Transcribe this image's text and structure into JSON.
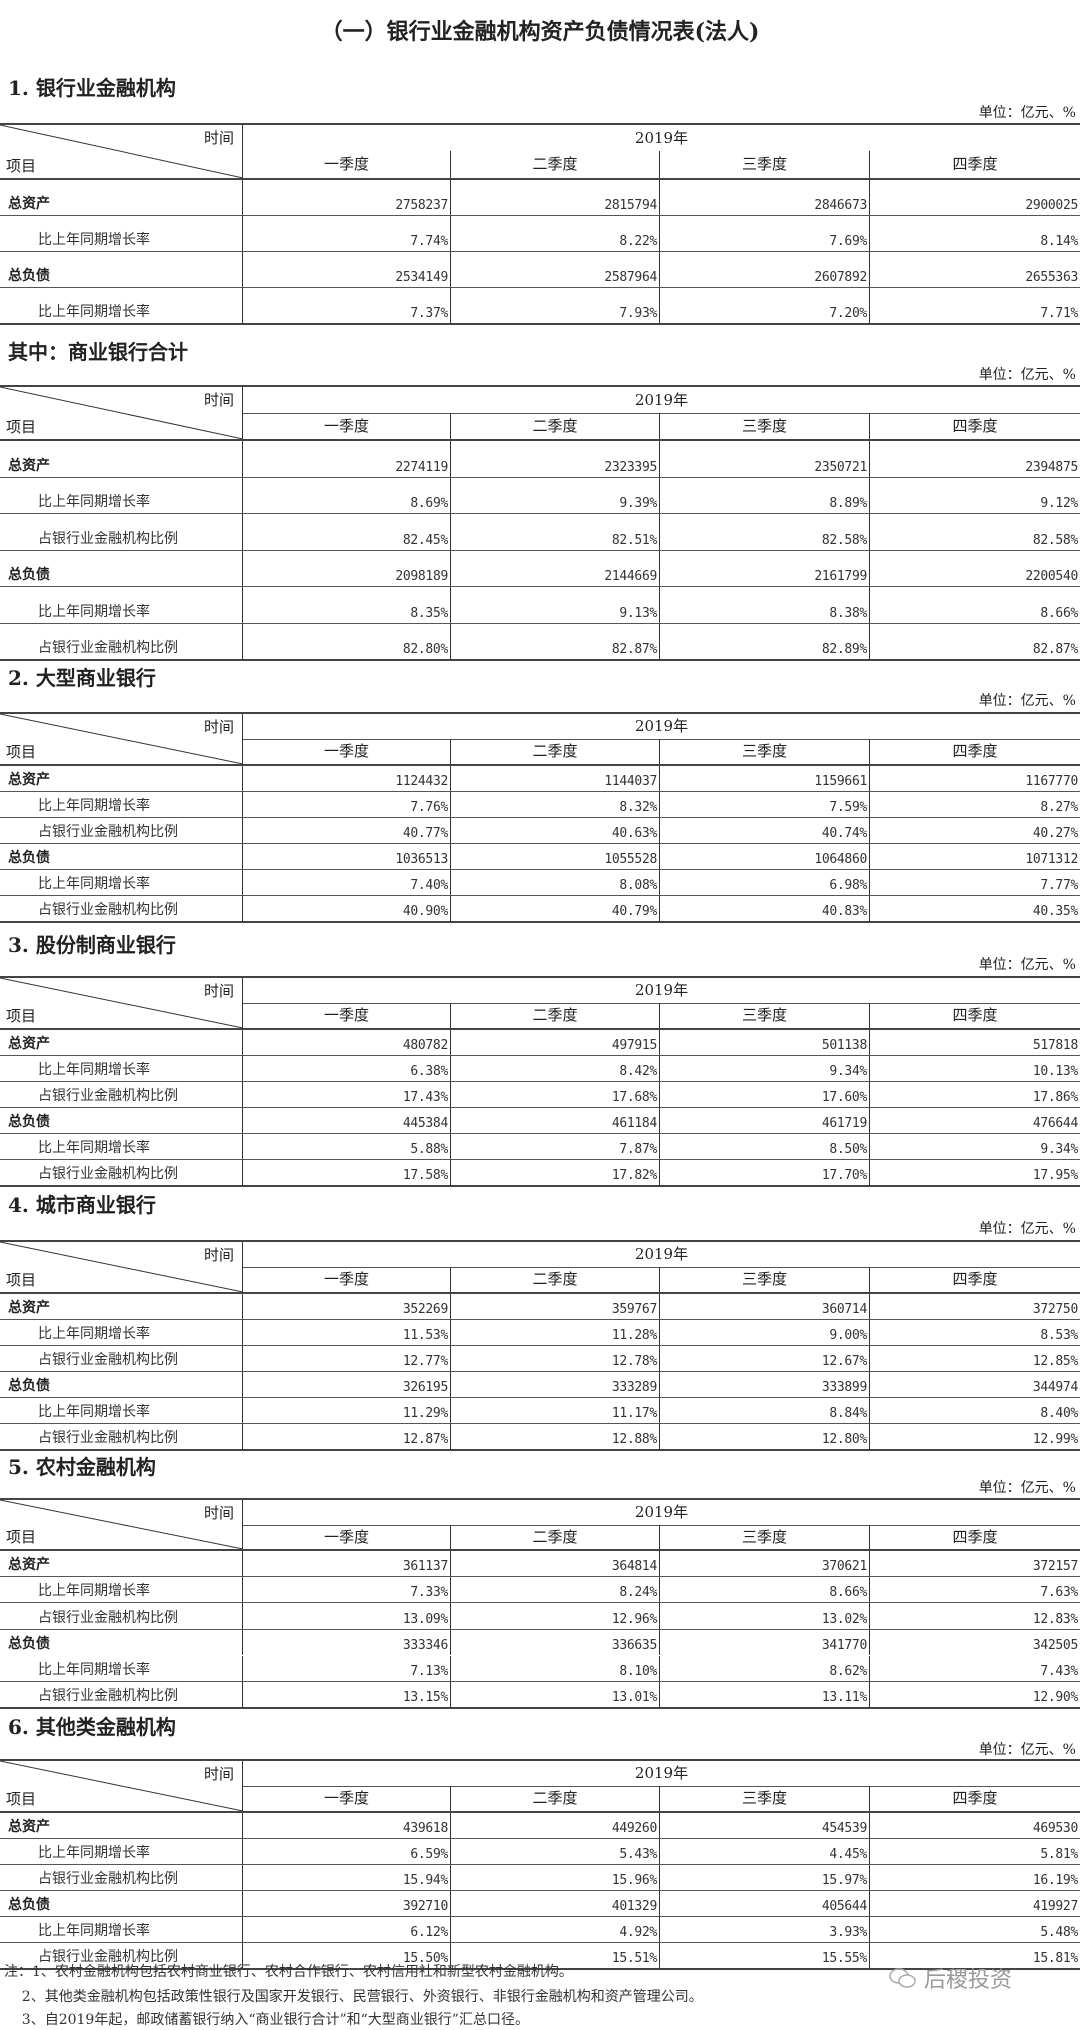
{
  "title": "（一）银行业金融机构资产负债情况表(法人)",
  "table_header": {
    "time": "时间",
    "item": "项目",
    "year": "2019年",
    "quarters": [
      "一季度",
      "二季度",
      "三季度",
      "四季度"
    ]
  },
  "unit": "单位：亿元、%",
  "sections": [
    {
      "heading": "1.  银行业金融机构",
      "rows": [
        {
          "label": "总资产",
          "main": true,
          "values": [
            "2758237",
            "2815794",
            "2846673",
            "2900025"
          ]
        },
        {
          "label": "比上年同期增长率",
          "values": [
            "7.74%",
            "8.22%",
            "7.69%",
            "8.14%"
          ]
        },
        {
          "label": "总负债",
          "main": true,
          "values": [
            "2534149",
            "2587964",
            "2607892",
            "2655363"
          ]
        },
        {
          "label": "比上年同期增长率",
          "values": [
            "7.37%",
            "7.93%",
            "7.20%",
            "7.71%"
          ]
        }
      ]
    },
    {
      "heading": "其中：商业银行合计",
      "rows": [
        {
          "label": "总资产",
          "main": true,
          "values": [
            "2274119",
            "2323395",
            "2350721",
            "2394875"
          ]
        },
        {
          "label": "比上年同期增长率",
          "values": [
            "8.69%",
            "9.39%",
            "8.89%",
            "9.12%"
          ]
        },
        {
          "label": "占银行业金融机构比例",
          "values": [
            "82.45%",
            "82.51%",
            "82.58%",
            "82.58%"
          ]
        },
        {
          "label": "总负债",
          "main": true,
          "values": [
            "2098189",
            "2144669",
            "2161799",
            "2200540"
          ]
        },
        {
          "label": "比上年同期增长率",
          "values": [
            "8.35%",
            "9.13%",
            "8.38%",
            "8.66%"
          ]
        },
        {
          "label": "占银行业金融机构比例",
          "values": [
            "82.80%",
            "82.87%",
            "82.89%",
            "82.87%"
          ]
        }
      ]
    },
    {
      "heading": "2.  大型商业银行",
      "rows": [
        {
          "label": "总资产",
          "main": true,
          "values": [
            "1124432",
            "1144037",
            "1159661",
            "1167770"
          ]
        },
        {
          "label": "比上年同期增长率",
          "values": [
            "7.76%",
            "8.32%",
            "7.59%",
            "8.27%"
          ]
        },
        {
          "label": "占银行业金融机构比例",
          "values": [
            "40.77%",
            "40.63%",
            "40.74%",
            "40.27%"
          ]
        },
        {
          "label": "总负债",
          "main": true,
          "values": [
            "1036513",
            "1055528",
            "1064860",
            "1071312"
          ]
        },
        {
          "label": "比上年同期增长率",
          "values": [
            "7.40%",
            "8.08%",
            "6.98%",
            "7.77%"
          ]
        },
        {
          "label": "占银行业金融机构比例",
          "values": [
            "40.90%",
            "40.79%",
            "40.83%",
            "40.35%"
          ]
        }
      ]
    },
    {
      "heading": "3.  股份制商业银行",
      "rows": [
        {
          "label": "总资产",
          "main": true,
          "values": [
            "480782",
            "497915",
            "501138",
            "517818"
          ]
        },
        {
          "label": "比上年同期增长率",
          "values": [
            "6.38%",
            "8.42%",
            "9.34%",
            "10.13%"
          ]
        },
        {
          "label": "占银行业金融机构比例",
          "values": [
            "17.43%",
            "17.68%",
            "17.60%",
            "17.86%"
          ]
        },
        {
          "label": "总负债",
          "main": true,
          "values": [
            "445384",
            "461184",
            "461719",
            "476644"
          ]
        },
        {
          "label": "比上年同期增长率",
          "values": [
            "5.88%",
            "7.87%",
            "8.50%",
            "9.34%"
          ]
        },
        {
          "label": "占银行业金融机构比例",
          "values": [
            "17.58%",
            "17.82%",
            "17.70%",
            "17.95%"
          ]
        }
      ]
    },
    {
      "heading": "4.  城市商业银行",
      "rows": [
        {
          "label": "总资产",
          "main": true,
          "values": [
            "352269",
            "359767",
            "360714",
            "372750"
          ]
        },
        {
          "label": "比上年同期增长率",
          "values": [
            "11.53%",
            "11.28%",
            "9.00%",
            "8.53%"
          ]
        },
        {
          "label": "占银行业金融机构比例",
          "values": [
            "12.77%",
            "12.78%",
            "12.67%",
            "12.85%"
          ]
        },
        {
          "label": "总负债",
          "main": true,
          "values": [
            "326195",
            "333289",
            "333899",
            "344974"
          ]
        },
        {
          "label": "比上年同期增长率",
          "values": [
            "11.29%",
            "11.17%",
            "8.84%",
            "8.40%"
          ]
        },
        {
          "label": "占银行业金融机构比例",
          "values": [
            "12.87%",
            "12.88%",
            "12.80%",
            "12.99%"
          ]
        }
      ]
    },
    {
      "heading": "5.  农村金融机构",
      "rows": [
        {
          "label": "总资产",
          "main": true,
          "values": [
            "361137",
            "364814",
            "370621",
            "372157"
          ]
        },
        {
          "label": "比上年同期增长率",
          "values": [
            "7.33%",
            "8.24%",
            "8.66%",
            "7.63%"
          ]
        },
        {
          "label": "占银行业金融机构比例",
          "values": [
            "13.09%",
            "12.96%",
            "13.02%",
            "12.83%"
          ]
        },
        {
          "label": "总负债",
          "main": true,
          "values": [
            "333346",
            "336635",
            "341770",
            "342505"
          ]
        },
        {
          "label": "比上年同期增长率",
          "values": [
            "7.13%",
            "8.10%",
            "8.62%",
            "7.43%"
          ]
        },
        {
          "label": "占银行业金融机构比例",
          "values": [
            "13.15%",
            "13.01%",
            "13.11%",
            "12.90%"
          ]
        }
      ]
    },
    {
      "heading": "6.  其他类金融机构",
      "rows": [
        {
          "label": "总资产",
          "main": true,
          "values": [
            "439618",
            "449260",
            "454539",
            "469530"
          ]
        },
        {
          "label": "比上年同期增长率",
          "values": [
            "6.59%",
            "5.43%",
            "4.45%",
            "5.81%"
          ]
        },
        {
          "label": "占银行业金融机构比例",
          "values": [
            "15.94%",
            "15.96%",
            "15.97%",
            "16.19%"
          ]
        },
        {
          "label": "总负债",
          "main": true,
          "values": [
            "392710",
            "401329",
            "405644",
            "419927"
          ]
        },
        {
          "label": "比上年同期增长率",
          "values": [
            "6.12%",
            "4.92%",
            "3.93%",
            "5.48%"
          ]
        },
        {
          "label": "占银行业金融机构比例",
          "values": [
            "15.50%",
            "15.51%",
            "15.55%",
            "15.81%"
          ]
        }
      ]
    }
  ],
  "notes": [
    "注：1、农村金融机构包括农村商业银行、农村合作银行、农村信用社和新型农村金融机构。",
    "    2、其他类金融机构包括政策性银行及国家开发银行、民营银行、外资银行、非银行金融机构和资产管理公司。",
    "    3、自2019年起，邮政储蓄银行纳入“商业银行合计”和“大型商业银行”汇总口径。"
  ],
  "watermark": {
    "text": "后稷投资",
    "icon": "wechat-icon"
  }
}
